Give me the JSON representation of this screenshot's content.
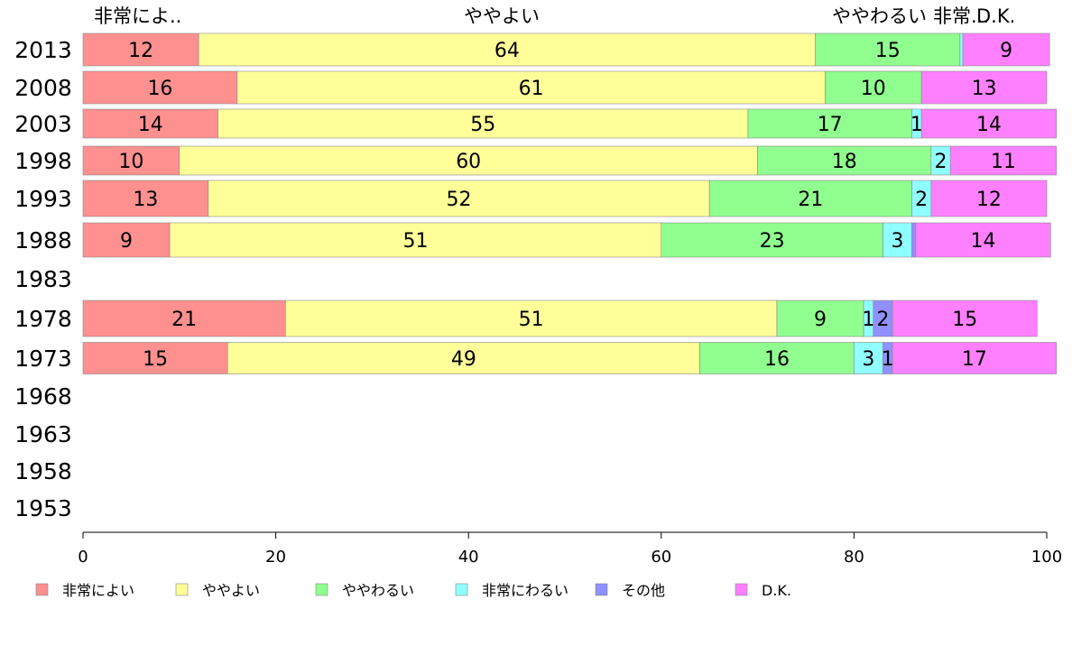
{
  "chart_data": {
    "type": "bar",
    "orientation": "horizontal",
    "stacked": true,
    "categories": [
      "2013",
      "2008",
      "2003",
      "1998",
      "1993",
      "1988",
      "1983",
      "1978",
      "1973",
      "1968",
      "1963",
      "1958",
      "1953"
    ],
    "series": [
      {
        "name": "非常によい",
        "color": "#ff9090",
        "values": [
          12,
          16,
          14,
          10,
          13,
          9,
          null,
          21,
          15,
          null,
          null,
          null,
          null
        ]
      },
      {
        "name": "ややよい",
        "color": "#ffff99",
        "values": [
          64,
          61,
          55,
          60,
          52,
          51,
          null,
          51,
          49,
          null,
          null,
          null,
          null
        ]
      },
      {
        "name": "ややわるい",
        "color": "#90ff90",
        "values": [
          15,
          10,
          17,
          18,
          21,
          23,
          null,
          9,
          16,
          null,
          null,
          null,
          null
        ]
      },
      {
        "name": "非常にわるい",
        "color": "#90ffff",
        "values": [
          0.3,
          0,
          1,
          2,
          2,
          3,
          null,
          1,
          3,
          null,
          null,
          null,
          null
        ]
      },
      {
        "name": "その他",
        "color": "#9090ff",
        "values": [
          0,
          0,
          0,
          0,
          0,
          0.4,
          null,
          2,
          1,
          null,
          null,
          null,
          null
        ]
      },
      {
        "name": "D.K.",
        "color": "#ff80ff",
        "values": [
          9,
          13,
          14,
          11,
          12,
          14,
          null,
          15,
          17,
          null,
          null,
          null,
          null
        ]
      }
    ],
    "top_labels": [
      "非常によ..",
      "ややよい",
      "ややわるい",
      "非常...",
      "D.K."
    ],
    "x_ticks": [
      "0",
      "20",
      "40",
      "60",
      "80",
      "100"
    ],
    "xlim": [
      0,
      100
    ],
    "xlabel": "",
    "ylabel": "",
    "title": "",
    "grid": false,
    "legend_position": "bottom"
  }
}
